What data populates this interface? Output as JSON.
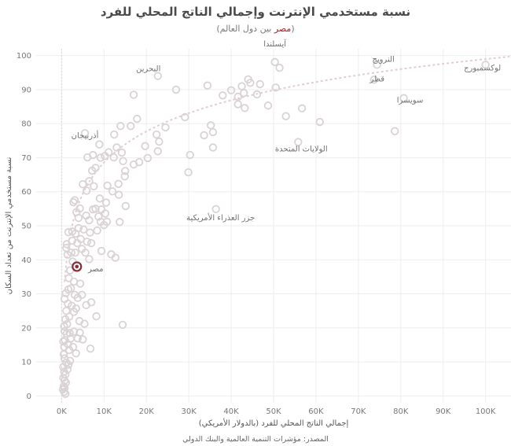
{
  "title": "نسبة مستخدمي الإنترنت وإجمالي الناتج المحلي للفرد",
  "subtitle_paren_open": "(",
  "subtitle_highlight": "مصر",
  "subtitle_rest": " بين دول العالم)",
  "source": "المصدر: مؤشرات التنمية العالمية والبنك الدولي",
  "colors": {
    "point": "#d9d3d6",
    "highlight": "#8b2a36",
    "trend": "#e3cdd3",
    "grid": "#eeeeee",
    "axis_text": "#777777"
  },
  "chart_data": {
    "type": "scatter",
    "xlabel": "إجمالي الناتج المحلي للفرد (بالدولار الأمريكي)",
    "ylabel": "نسبة مستخدمي الإنترنت من تعداد السكان",
    "xlim": [
      -6000,
      106000
    ],
    "ylim": [
      -2,
      102
    ],
    "x_ticks": [
      0,
      10000,
      20000,
      30000,
      40000,
      50000,
      60000,
      70000,
      80000,
      90000,
      100000
    ],
    "x_tick_labels": [
      "0K",
      "10K",
      "20K",
      "30K",
      "40K",
      "50K",
      "60K",
      "70K",
      "80K",
      "90K",
      "100K"
    ],
    "y_ticks": [
      0,
      10,
      20,
      30,
      40,
      50,
      60,
      70,
      80,
      90,
      100
    ],
    "y_tick_labels": [
      "0",
      "10",
      "20",
      "30",
      "40",
      "50",
      "60",
      "70",
      "80",
      "90",
      "100"
    ],
    "grid": true,
    "trendline": "logarithmic",
    "highlight": {
      "label": "مصر",
      "x": 3600,
      "y": 38
    },
    "labels": [
      {
        "text": "آيسلندا",
        "x": 50300,
        "y": 98.1
      },
      {
        "text": "النرويج",
        "x": 74400,
        "y": 97.3
      },
      {
        "text": "لوكسمبورج",
        "x": 100000,
        "y": 97.3
      },
      {
        "text": "البحرين",
        "x": 22700,
        "y": 94
      },
      {
        "text": "قطر",
        "x": 73700,
        "y": 92.9
      },
      {
        "text": "سويسرا",
        "x": 80700,
        "y": 87.5
      },
      {
        "text": "أذربيجان",
        "x": 5500,
        "y": 77.2
      },
      {
        "text": "الولايات المتحدة",
        "x": 55800,
        "y": 74.6
      },
      {
        "text": "جزر العذراء الأمريكية",
        "x": 36400,
        "y": 54.9
      },
      {
        "text": "مصر",
        "x": 3600,
        "y": 38
      }
    ],
    "points": [
      [
        50300,
        98.1
      ],
      [
        74400,
        97.3
      ],
      [
        100000,
        97.3
      ],
      [
        22700,
        94
      ],
      [
        73700,
        92.9
      ],
      [
        80700,
        87.5
      ],
      [
        5500,
        77.2
      ],
      [
        55800,
        74.6
      ],
      [
        36400,
        54.9
      ],
      [
        51400,
        96.4
      ],
      [
        40000,
        89.8
      ],
      [
        44000,
        93
      ],
      [
        44500,
        92
      ],
      [
        46800,
        91.6
      ],
      [
        42500,
        91
      ],
      [
        41600,
        87.9
      ],
      [
        43000,
        89
      ],
      [
        46100,
        88.6
      ],
      [
        38000,
        88.3
      ],
      [
        41600,
        85.7
      ],
      [
        43200,
        84.6
      ],
      [
        34400,
        91.2
      ],
      [
        27000,
        90
      ],
      [
        29100,
        81.9
      ],
      [
        48700,
        85.3
      ],
      [
        52900,
        82.2
      ],
      [
        56700,
        84.5
      ],
      [
        60900,
        80.5
      ],
      [
        78600,
        77.8
      ],
      [
        50500,
        90.6
      ],
      [
        17000,
        88.5
      ],
      [
        17800,
        81.4
      ],
      [
        24500,
        78.9
      ],
      [
        22400,
        76.8
      ],
      [
        23000,
        74.7
      ],
      [
        22700,
        71.9
      ],
      [
        19700,
        73.4
      ],
      [
        20300,
        69.9
      ],
      [
        18300,
        68.7
      ],
      [
        35700,
        77.5
      ],
      [
        33600,
        76.6
      ],
      [
        35200,
        79.5
      ],
      [
        30300,
        70.8
      ],
      [
        29900,
        65.7
      ],
      [
        35700,
        73
      ],
      [
        16300,
        79.3
      ],
      [
        13900,
        79.3
      ],
      [
        12400,
        76.8
      ],
      [
        13000,
        73
      ],
      [
        14200,
        71.5
      ],
      [
        11100,
        71.6
      ],
      [
        14500,
        69
      ],
      [
        15000,
        66.1
      ],
      [
        17000,
        68
      ],
      [
        8900,
        73.9
      ],
      [
        9200,
        70
      ],
      [
        10200,
        70.5
      ],
      [
        12300,
        70.1
      ],
      [
        14900,
        64.5
      ],
      [
        13400,
        62.3
      ],
      [
        10500,
        56.8
      ],
      [
        7400,
        70.8
      ],
      [
        8000,
        67
      ],
      [
        7200,
        66.2
      ],
      [
        6100,
        70.1
      ],
      [
        6500,
        63.1
      ],
      [
        5000,
        62.2
      ],
      [
        5900,
        60.3
      ],
      [
        7600,
        61.6
      ],
      [
        10800,
        61.8
      ],
      [
        12000,
        60.1
      ],
      [
        13500,
        59.1
      ],
      [
        9000,
        58
      ],
      [
        8000,
        55
      ],
      [
        9400,
        54.8
      ],
      [
        10300,
        53.6
      ],
      [
        8700,
        52.7
      ],
      [
        7400,
        54.8
      ],
      [
        6500,
        51.6
      ],
      [
        5800,
        53
      ],
      [
        4300,
        55.1
      ],
      [
        4000,
        52.3
      ],
      [
        3500,
        54
      ],
      [
        2800,
        56.9
      ],
      [
        3100,
        57.5
      ],
      [
        9200,
        51.2
      ],
      [
        10700,
        51.2
      ],
      [
        13700,
        51.1
      ],
      [
        15100,
        55.8
      ],
      [
        8400,
        48.6
      ],
      [
        10000,
        50.2
      ],
      [
        6700,
        48
      ],
      [
        5200,
        48.9
      ],
      [
        4000,
        49.3
      ],
      [
        3300,
        47.7
      ],
      [
        2500,
        48.3
      ],
      [
        1600,
        48.1
      ],
      [
        1200,
        44.6
      ],
      [
        2500,
        45.6
      ],
      [
        3700,
        44.9
      ],
      [
        4500,
        46.1
      ],
      [
        6000,
        45.3
      ],
      [
        7000,
        44.9
      ],
      [
        4800,
        43.2
      ],
      [
        3200,
        42.1
      ],
      [
        2300,
        42.1
      ],
      [
        1400,
        41.5
      ],
      [
        1100,
        43.5
      ],
      [
        5600,
        42.1
      ],
      [
        6500,
        40.2
      ],
      [
        9400,
        42.6
      ],
      [
        11700,
        41.6
      ],
      [
        12700,
        40.6
      ],
      [
        2600,
        39.5
      ],
      [
        2000,
        36.9
      ],
      [
        1700,
        34.6
      ],
      [
        2900,
        33.6
      ],
      [
        4400,
        33
      ],
      [
        2200,
        31.6
      ],
      [
        1000,
        30.2
      ],
      [
        3100,
        29.7
      ],
      [
        4800,
        29.7
      ],
      [
        3800,
        28.8
      ],
      [
        7000,
        27.5
      ],
      [
        5800,
        26.7
      ],
      [
        1500,
        27.1
      ],
      [
        2400,
        26.5
      ],
      [
        3400,
        25.7
      ],
      [
        2900,
        24.7
      ],
      [
        1800,
        23.3
      ],
      [
        900,
        22.5
      ],
      [
        1300,
        21.1
      ],
      [
        4200,
        22
      ],
      [
        5400,
        21.2
      ],
      [
        8200,
        23.4
      ],
      [
        14400,
        20.9
      ],
      [
        600,
        20.4
      ],
      [
        700,
        19
      ],
      [
        1200,
        18.3
      ],
      [
        1900,
        18.5
      ],
      [
        2900,
        18.9
      ],
      [
        4300,
        18.6
      ],
      [
        2100,
        16.8
      ],
      [
        800,
        16.4
      ],
      [
        3800,
        16.9
      ],
      [
        5000,
        16.6
      ],
      [
        1500,
        15.2
      ],
      [
        600,
        14.4
      ],
      [
        1800,
        13.5
      ],
      [
        3400,
        12.5
      ],
      [
        6800,
        13.9
      ],
      [
        500,
        12.2
      ],
      [
        700,
        11
      ],
      [
        1100,
        9.8
      ],
      [
        1600,
        9.2
      ],
      [
        400,
        8.5
      ],
      [
        600,
        7.1
      ],
      [
        900,
        6.3
      ],
      [
        400,
        5.3
      ],
      [
        700,
        4.5
      ],
      [
        1000,
        3.9
      ],
      [
        500,
        2.8
      ],
      [
        300,
        1.9
      ],
      [
        600,
        1.2
      ],
      [
        900,
        0.6
      ],
      [
        700,
        2.3
      ],
      [
        1400,
        7.8
      ],
      [
        2000,
        10.3
      ],
      [
        2700,
        14.4
      ],
      [
        1100,
        25
      ],
      [
        400,
        16
      ],
      [
        700,
        28.5
      ],
      [
        1600,
        31.3
      ]
    ]
  }
}
